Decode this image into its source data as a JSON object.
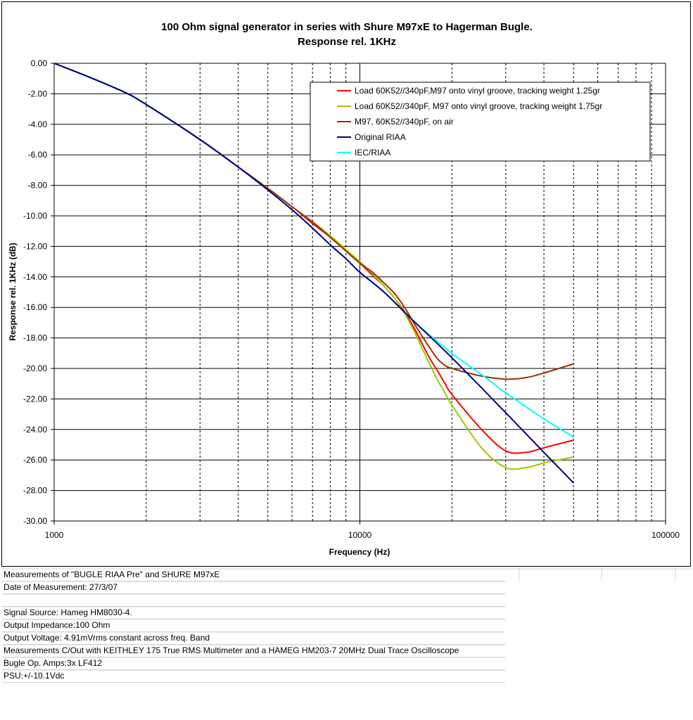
{
  "chart_data": {
    "type": "line",
    "title": "100 Ohm signal generator in series with Shure M97xE to Hagerman Bugle.",
    "subtitle": "Response rel. 1KHz",
    "xlabel": "Frequency (Hz)",
    "ylabel": "Response rel. 1KHz (dB)",
    "xscale": "log",
    "xlim": [
      1000,
      100000
    ],
    "ylim": [
      -30,
      0
    ],
    "xticks": [
      "1000",
      "10000",
      "100000"
    ],
    "yticks": [
      "0.00",
      "-2.00",
      "-4.00",
      "-6.00",
      "-8.00",
      "-10.00",
      "-12.00",
      "-14.00",
      "-16.00",
      "-18.00",
      "-20.00",
      "-22.00",
      "-24.00",
      "-26.00",
      "-28.00",
      "-30.00"
    ],
    "grid": true,
    "legend_position": "top-right",
    "series": [
      {
        "name": "Load 60K52//340pF,M97 onto vinyl groove, tracking weight 1.25gr",
        "color": "#ff0000",
        "x": [
          1000,
          1300,
          1700,
          2000,
          3000,
          4000,
          5000,
          6000,
          7000,
          8000,
          9000,
          10000,
          11000,
          12000,
          13000,
          14000,
          15000,
          16000,
          17000,
          18000,
          19000,
          20000,
          25000,
          30000,
          35000,
          40000,
          50000
        ],
        "y": [
          0.0,
          -0.9,
          -1.9,
          -2.7,
          -5.0,
          -6.8,
          -8.2,
          -9.4,
          -10.5,
          -11.4,
          -12.3,
          -13.1,
          -13.9,
          -14.6,
          -15.4,
          -16.3,
          -17.3,
          -18.4,
          -19.4,
          -20.2,
          -21.0,
          -21.7,
          -24.0,
          -25.4,
          -25.5,
          -25.2,
          -24.7
        ]
      },
      {
        "name": "Load 60K52//340pF, M97 onto vinyl groove, tracking weight  1.75gr",
        "color": "#99cc00",
        "x": [
          1000,
          1300,
          1700,
          2000,
          3000,
          4000,
          5000,
          6000,
          7000,
          8000,
          9000,
          10000,
          11000,
          12000,
          13000,
          14000,
          15000,
          16000,
          17000,
          18000,
          19000,
          20000,
          25000,
          30000,
          35000,
          40000,
          50000
        ],
        "y": [
          0.0,
          -0.9,
          -1.9,
          -2.7,
          -5.0,
          -6.8,
          -8.2,
          -9.4,
          -10.4,
          -11.3,
          -12.2,
          -13.0,
          -13.8,
          -14.6,
          -15.4,
          -16.4,
          -17.5,
          -18.7,
          -19.8,
          -20.8,
          -21.6,
          -22.4,
          -25.2,
          -26.5,
          -26.5,
          -26.2,
          -25.8
        ]
      },
      {
        "name": "M97, 60K52//340pF,  on air",
        "color": "#993300",
        "x": [
          1000,
          1300,
          1700,
          2000,
          3000,
          4000,
          5000,
          6000,
          7000,
          8000,
          9000,
          10000,
          11000,
          12000,
          13000,
          14000,
          15000,
          16000,
          17000,
          18000,
          19000,
          20000,
          25000,
          30000,
          35000,
          40000,
          50000
        ],
        "y": [
          0.0,
          -0.9,
          -1.9,
          -2.7,
          -5.0,
          -6.8,
          -8.2,
          -9.4,
          -10.4,
          -11.4,
          -12.3,
          -13.1,
          -13.7,
          -14.4,
          -15.1,
          -16.0,
          -17.0,
          -17.9,
          -18.7,
          -19.4,
          -19.8,
          -20.0,
          -20.5,
          -20.7,
          -20.6,
          -20.3,
          -19.7
        ]
      },
      {
        "name": "Original RIAA",
        "color": "#000080",
        "x": [
          1000,
          1300,
          1700,
          2000,
          3000,
          4000,
          5000,
          6000,
          7000,
          8000,
          9000,
          10000,
          12000,
          15000,
          20000,
          30000,
          40000,
          50000
        ],
        "y": [
          0.0,
          -0.9,
          -1.9,
          -2.7,
          -5.0,
          -6.8,
          -8.3,
          -9.6,
          -10.8,
          -11.9,
          -12.8,
          -13.7,
          -15.0,
          -16.9,
          -19.3,
          -22.9,
          -25.5,
          -27.5
        ]
      },
      {
        "name": "IEC/RIAA",
        "color": "#00ffff",
        "x": [
          1000,
          1300,
          1700,
          2000,
          3000,
          4000,
          5000,
          6000,
          7000,
          8000,
          9000,
          10000,
          12000,
          15000,
          20000,
          25000,
          30000,
          40000,
          50000
        ],
        "y": [
          0.0,
          -0.9,
          -1.9,
          -2.7,
          -5.0,
          -6.8,
          -8.3,
          -9.6,
          -10.8,
          -11.9,
          -12.8,
          -13.7,
          -15.0,
          -16.9,
          -19.0,
          -20.4,
          -21.6,
          -23.3,
          -24.5
        ]
      }
    ]
  },
  "notes": [
    "Measurements of \"BUGLE RIAA Pre\" and SHURE M97xE",
    "Date of Measurement: 27/3/07",
    "",
    "Signal Source: Hameg HM8030-4.",
    "Output Impedance:100 Ohm",
    "Output Voltage: 4.91mVrms constant across freq. Band",
    "Measurements C/Out with KEITHLEY 175 True RMS Multimeter and a HAMEG HM203-7 20MHz Dual Trace Oscilloscope",
    "Bugle Op. Amps:3x LF412",
    "PSU:+/-10.1Vdc"
  ]
}
